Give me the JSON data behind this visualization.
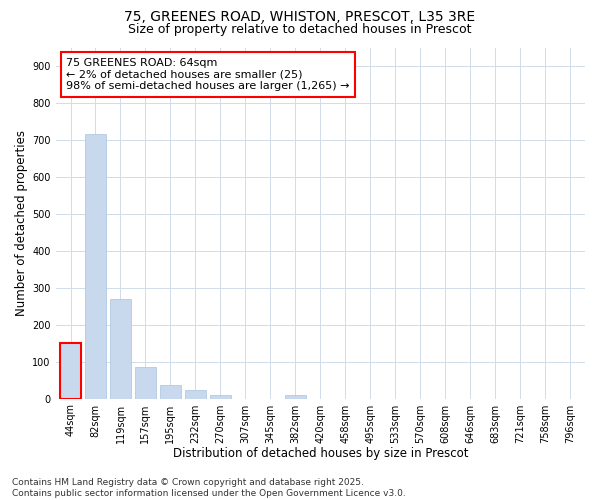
{
  "title_line1": "75, GREENES ROAD, WHISTON, PRESCOT, L35 3RE",
  "title_line2": "Size of property relative to detached houses in Prescot",
  "xlabel": "Distribution of detached houses by size in Prescot",
  "ylabel": "Number of detached properties",
  "categories": [
    "44sqm",
    "82sqm",
    "119sqm",
    "157sqm",
    "195sqm",
    "232sqm",
    "270sqm",
    "307sqm",
    "345sqm",
    "382sqm",
    "420sqm",
    "458sqm",
    "495sqm",
    "533sqm",
    "570sqm",
    "608sqm",
    "646sqm",
    "683sqm",
    "721sqm",
    "758sqm",
    "796sqm"
  ],
  "values": [
    150,
    715,
    270,
    85,
    37,
    22,
    10,
    0,
    0,
    10,
    0,
    0,
    0,
    0,
    0,
    0,
    0,
    0,
    0,
    0,
    0
  ],
  "bar_color": "#c8d9ee",
  "bar_edge_color": "#a8c4e0",
  "highlight_bar_index": 0,
  "highlight_edge_color": "red",
  "annotation_text": "75 GREENES ROAD: 64sqm\n← 2% of detached houses are smaller (25)\n98% of semi-detached houses are larger (1,265) →",
  "annotation_box_edge_color": "red",
  "annotation_box_face_color": "white",
  "ylim": [
    0,
    950
  ],
  "yticks": [
    0,
    100,
    200,
    300,
    400,
    500,
    600,
    700,
    800,
    900
  ],
  "background_color": "#ffffff",
  "plot_bg_color": "#ffffff",
  "grid_color": "#d0dce8",
  "footer_line1": "Contains HM Land Registry data © Crown copyright and database right 2025.",
  "footer_line2": "Contains public sector information licensed under the Open Government Licence v3.0.",
  "title_fontsize": 10,
  "subtitle_fontsize": 9,
  "axis_label_fontsize": 8.5,
  "tick_fontsize": 7,
  "annotation_fontsize": 8,
  "footer_fontsize": 6.5
}
